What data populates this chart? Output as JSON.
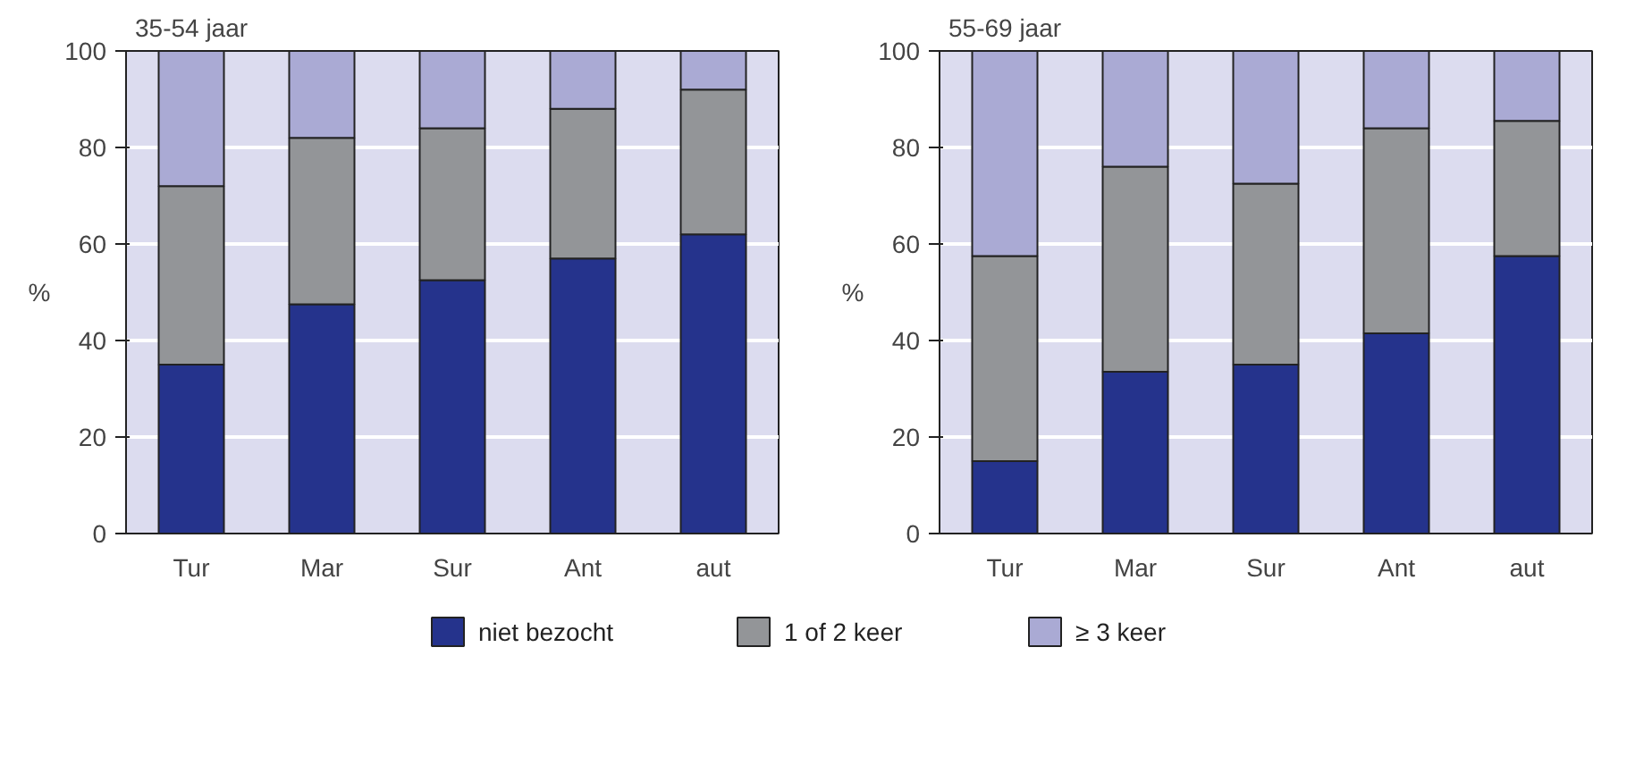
{
  "chart_data": [
    {
      "type": "bar",
      "title": "35-54 jaar",
      "ylabel": "%",
      "categories": [
        "Tur",
        "Mar",
        "Sur",
        "Ant",
        "aut"
      ],
      "stacked": true,
      "ylim": [
        0,
        100
      ],
      "yticks": [
        0,
        20,
        40,
        60,
        80,
        100
      ],
      "grid": "y",
      "legend": "bottom",
      "series": [
        {
          "name": "niet bezocht",
          "color": "#25338c",
          "values": [
            35,
            47.5,
            52.5,
            57,
            62
          ]
        },
        {
          "name": "1 of 2 keer",
          "color": "#939598",
          "values": [
            37,
            34.5,
            31.5,
            31,
            30
          ]
        },
        {
          "name": "≥ 3 keer",
          "color": "#aaaad4",
          "values": [
            28,
            18,
            16,
            12,
            8
          ]
        }
      ]
    },
    {
      "type": "bar",
      "title": "55-69 jaar",
      "ylabel": "%",
      "categories": [
        "Tur",
        "Mar",
        "Sur",
        "Ant",
        "aut"
      ],
      "stacked": true,
      "ylim": [
        0,
        100
      ],
      "yticks": [
        0,
        20,
        40,
        60,
        80,
        100
      ],
      "grid": "y",
      "series": [
        {
          "color": "#25338c",
          "values": [
            15,
            33.5,
            35,
            41.5,
            57.5
          ]
        },
        {
          "color": "#939598",
          "values": [
            42.5,
            42.5,
            37.5,
            42.5,
            28
          ]
        },
        {
          "color": "#aaaad4",
          "values": [
            42.5,
            24,
            27.5,
            16,
            14.5
          ]
        }
      ]
    }
  ]
}
